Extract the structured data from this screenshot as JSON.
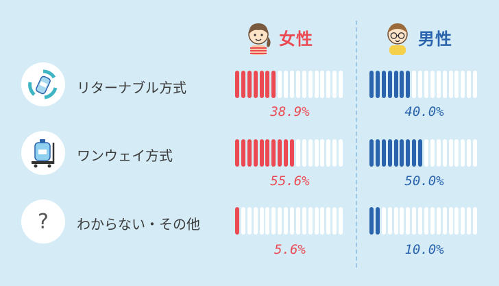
{
  "headers": {
    "female": "女性",
    "male": "男性"
  },
  "colors": {
    "female": "#ec4a52",
    "male": "#2a64ad",
    "empty": "#ffffff",
    "background": "#d5ecf7"
  },
  "rows": [
    {
      "label": "リターナブル方式",
      "icon": "recycle-bottle-icon",
      "female": "38.9%",
      "male": "40.0%"
    },
    {
      "label": "ワンウェイ方式",
      "icon": "water-jug-cart-icon",
      "female": "55.6%",
      "male": "50.0%"
    },
    {
      "label": "わからない・その他",
      "icon": "question-icon",
      "female": "5.6%",
      "male": "10.0%"
    }
  ],
  "question_mark": "?",
  "chart_data": {
    "type": "bar",
    "categories": [
      "リターナブル方式",
      "ワンウェイ方式",
      "わからない・その他"
    ],
    "series": [
      {
        "name": "女性",
        "values": [
          38.9,
          55.6,
          5.6
        ]
      },
      {
        "name": "男性",
        "values": [
          40.0,
          50.0,
          10.0
        ]
      }
    ],
    "segments_per_bar": 18
  }
}
